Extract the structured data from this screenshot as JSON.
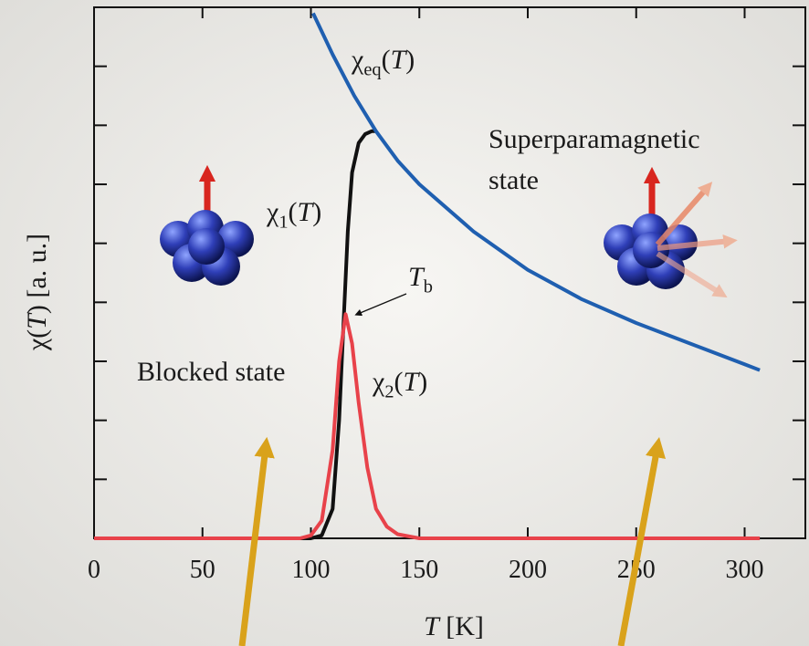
{
  "chart_data": {
    "type": "line",
    "x_label": "T [K]",
    "y_label": "χ(T) [a. u.]",
    "xlim": [
      0,
      328
    ],
    "xticks": [
      0,
      50,
      100,
      150,
      200,
      250,
      300
    ],
    "ylim": [
      0,
      9
    ],
    "yticks": [
      0,
      1,
      2,
      3,
      4,
      5,
      6,
      7,
      8,
      9
    ],
    "series": [
      {
        "name": "χ1(T)",
        "color": "#111111",
        "x": [
          0,
          100,
          105,
          110,
          113,
          115,
          117,
          119,
          122,
          125,
          128,
          130
        ],
        "values": [
          0,
          0,
          0.05,
          0.5,
          2,
          3.6,
          5.2,
          6.2,
          6.7,
          6.85,
          6.9,
          6.9
        ]
      },
      {
        "name": "χ2(T)",
        "color": "#e8424a",
        "x": [
          0,
          95,
          100,
          105,
          110,
          113,
          116,
          119,
          122,
          126,
          130,
          135,
          140,
          150,
          307
        ],
        "values": [
          0,
          0,
          0.05,
          0.3,
          1.5,
          3.0,
          3.8,
          3.3,
          2.3,
          1.2,
          0.5,
          0.2,
          0.07,
          0,
          0
        ]
      },
      {
        "name": "χeq(T)",
        "color": "#1f5fb0",
        "x": [
          101,
          110,
          120,
          130,
          140,
          150,
          175,
          200,
          225,
          250,
          275,
          300,
          307
        ],
        "values": [
          8.9,
          8.2,
          7.5,
          6.9,
          6.4,
          6.0,
          5.2,
          4.55,
          4.05,
          3.65,
          3.3,
          2.95,
          2.85
        ]
      }
    ],
    "annotations": [
      "Superparamagnetic",
      "state",
      "Blocked state",
      "Tb"
    ]
  }
}
